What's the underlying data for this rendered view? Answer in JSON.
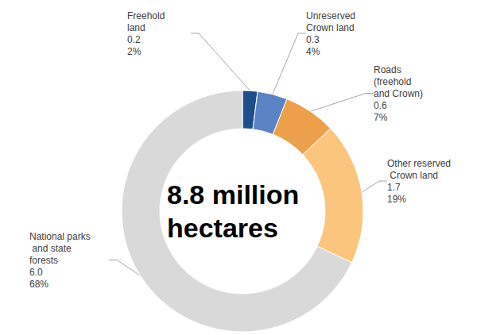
{
  "chart_data": {
    "type": "pie",
    "annotation": "8.8 million hectares",
    "categories": [
      "Freehold land",
      "Unreserved Crown land",
      "Roads (freehold and Crown)",
      "Other reserved Crown land",
      "National parks and state forests"
    ],
    "values": [
      2,
      4,
      7,
      19,
      68
    ],
    "value_labels": [
      "2%",
      "4%",
      "7%",
      "19%",
      "68%"
    ],
    "hectares": [
      "0.2",
      "0.3",
      "0.6",
      "1.7",
      "6.0"
    ],
    "colors": [
      "#1f4e8c",
      "#5b84c4",
      "#eda04b",
      "#fcc57e",
      "#d9d9d9"
    ],
    "data_labels": true,
    "legend": null
  }
}
